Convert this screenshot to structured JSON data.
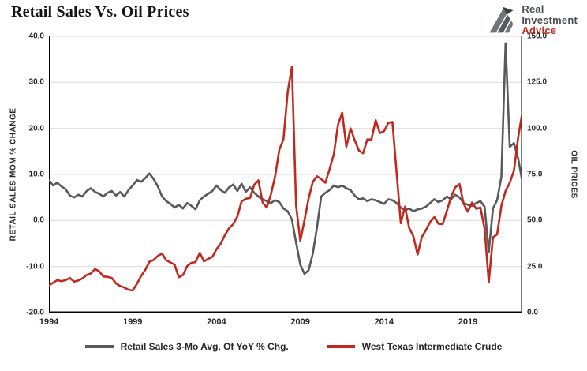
{
  "header": {
    "title": "Retail Sales Vs. Oil Prices",
    "logo": {
      "line1": "Real",
      "line2": "Investment",
      "line3": "Advice"
    }
  },
  "colors": {
    "retail_line": "#595959",
    "oil_line": "#C1281E",
    "grid": "#D9D9D9",
    "axis": "#000000",
    "logo_gray": "#565B60",
    "logo_red": "#C02B20"
  },
  "chart_data": {
    "type": "line",
    "title": "Retail Sales Vs. Oil Prices",
    "x_start": 1994.0,
    "x_end": 2022.25,
    "x_step_years": 0.25,
    "x_tick_years": [
      1994,
      1999,
      2004,
      2009,
      2014,
      2019
    ],
    "x_tick_labels": [
      "1994",
      "1999",
      "2004",
      "2009",
      "2014",
      "2019"
    ],
    "grid": "horizontal",
    "legend_position": "bottom",
    "left_axis": {
      "label": "RETAIL SALES MOM % CHANGE",
      "min": -20,
      "max": 40,
      "tick_labels": [
        "40.0",
        "30.0",
        "20.0",
        "10.0",
        "0.0",
        "-10.0",
        "-20.0"
      ]
    },
    "right_axis": {
      "label": "OIL PRICES",
      "min": 0,
      "max": 150,
      "tick_labels": [
        "150.0",
        "125.0",
        "100.0",
        "75.0",
        "50.0",
        "25.0",
        "0.0"
      ]
    },
    "series": [
      {
        "name": "Retail Sales 3-Mo Avg, Of YoY % Chg.",
        "axis": "left",
        "color": "#595959",
        "values": [
          8.8,
          7.6,
          8.2,
          7.4,
          6.8,
          5.4,
          5.0,
          5.6,
          5.2,
          6.4,
          7.0,
          6.2,
          5.8,
          5.2,
          6.0,
          6.4,
          5.4,
          6.2,
          5.2,
          6.6,
          7.6,
          8.8,
          8.4,
          9.2,
          10.2,
          9.0,
          7.4,
          5.2,
          4.2,
          3.6,
          2.8,
          3.4,
          2.6,
          3.8,
          3.2,
          2.4,
          4.4,
          5.2,
          5.8,
          6.4,
          7.6,
          6.6,
          6.0,
          7.2,
          7.8,
          6.4,
          8.0,
          6.2,
          7.2,
          6.0,
          5.2,
          4.6,
          4.2,
          3.8,
          4.4,
          4.0,
          2.6,
          2.0,
          0.2,
          -4.8,
          -9.6,
          -11.6,
          -10.8,
          -7.2,
          -1.5,
          5.2,
          6.0,
          6.6,
          7.6,
          7.2,
          7.6,
          7.0,
          6.6,
          5.4,
          4.6,
          4.8,
          4.2,
          4.6,
          4.4,
          4.0,
          3.6,
          4.6,
          4.4,
          3.8,
          2.8,
          2.2,
          2.6,
          2.0,
          2.4,
          2.6,
          3.0,
          3.8,
          4.6,
          4.0,
          4.4,
          5.2,
          4.6,
          5.6,
          5.0,
          3.8,
          3.4,
          3.2,
          3.8,
          4.2,
          3.0,
          -6.8,
          2.6,
          4.4,
          9.5,
          38.5,
          16.0,
          16.8,
          13.5,
          8.5
        ]
      },
      {
        "name": "West Texas Intermediate Crude",
        "axis": "right",
        "color": "#C1281E",
        "values": [
          14.8,
          16.2,
          17.6,
          17.0,
          17.6,
          18.8,
          16.8,
          17.4,
          18.6,
          20.4,
          21.2,
          23.6,
          22.4,
          19.6,
          19.4,
          18.8,
          15.8,
          14.4,
          13.6,
          12.4,
          12.0,
          15.6,
          19.8,
          23.2,
          27.6,
          28.6,
          30.8,
          32.0,
          28.4,
          27.2,
          26.0,
          19.2,
          20.4,
          25.2,
          27.0,
          27.4,
          32.4,
          27.8,
          29.2,
          30.2,
          34.4,
          37.4,
          42.0,
          45.8,
          48.0,
          52.2,
          60.4,
          61.8,
          62.2,
          69.4,
          71.8,
          59.8,
          57.0,
          64.2,
          74.0,
          88.4,
          94.2,
          120.0,
          133.5,
          58.0,
          39.0,
          50.0,
          62.0,
          71.0,
          74.0,
          72.5,
          70.5,
          78.0,
          86.0,
          102.0,
          108.5,
          90.0,
          100.0,
          93.5,
          88.0,
          86.5,
          94.0,
          94.0,
          104.5,
          97.5,
          98.5,
          103.0,
          103.5,
          76.0,
          48.5,
          57.5,
          46.0,
          41.5,
          31.5,
          41.0,
          44.8,
          49.2,
          51.8,
          48.2,
          48.0,
          55.2,
          62.8,
          68.0,
          69.8,
          59.0,
          54.8,
          59.8,
          56.4,
          57.0,
          45.5,
          16.5,
          40.8,
          42.5,
          58.0,
          66.0,
          70.5,
          77.0,
          95.0,
          108.5
        ]
      }
    ]
  }
}
